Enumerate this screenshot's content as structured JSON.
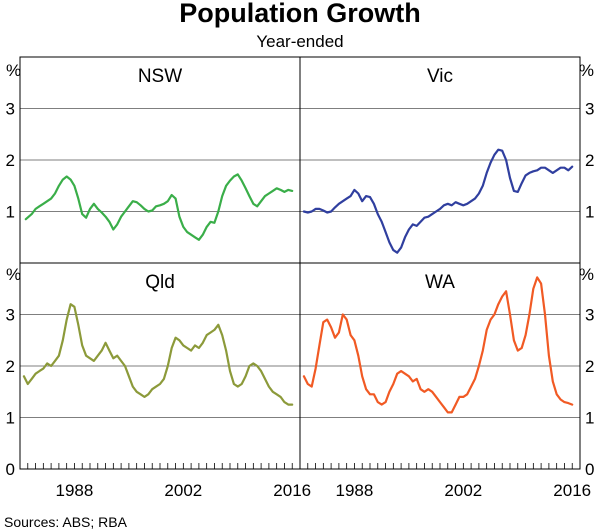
{
  "chart_data": {
    "type": "line",
    "title": "Population Growth",
    "subtitle": "Year-ended",
    "unit_label": "%",
    "source": "Sources:  ABS; RBA",
    "x_tick_labels": [
      "1988",
      "2002",
      "2016"
    ],
    "x_ticks": [
      1988,
      2002,
      2016
    ],
    "xlim": [
      1981,
      2017
    ],
    "panels": [
      {
        "name": "NSW",
        "color": "#3aae49",
        "ylim": [
          0,
          4
        ],
        "yticks": [
          1,
          2,
          3
        ],
        "series": [
          {
            "name": "NSW",
            "x": [
              1981.75,
              1982.5,
              1983.0,
              1983.5,
              1984.0,
              1984.5,
              1985.0,
              1985.5,
              1986.0,
              1986.5,
              1987.0,
              1987.5,
              1988.0,
              1988.5,
              1989.0,
              1989.5,
              1990.0,
              1990.5,
              1991.0,
              1991.5,
              1992.0,
              1992.5,
              1993.0,
              1993.5,
              1994.0,
              1994.5,
              1995.0,
              1995.5,
              1996.0,
              1996.5,
              1997.0,
              1997.5,
              1998.0,
              1998.5,
              1999.0,
              1999.5,
              2000.0,
              2000.5,
              2001.0,
              2001.5,
              2002.0,
              2002.5,
              2003.0,
              2003.5,
              2004.0,
              2004.5,
              2005.0,
              2005.5,
              2006.0,
              2006.5,
              2007.0,
              2007.5,
              2008.0,
              2008.5,
              2009.0,
              2009.5,
              2010.0,
              2010.5,
              2011.0,
              2011.5,
              2012.0,
              2012.5,
              2013.0,
              2013.5,
              2014.0,
              2014.5,
              2015.0,
              2015.5,
              2016.0
            ],
            "y": [
              0.85,
              0.95,
              1.05,
              1.1,
              1.15,
              1.2,
              1.25,
              1.35,
              1.5,
              1.62,
              1.68,
              1.62,
              1.5,
              1.25,
              0.95,
              0.88,
              1.05,
              1.15,
              1.05,
              0.98,
              0.9,
              0.8,
              0.65,
              0.75,
              0.9,
              1.0,
              1.1,
              1.2,
              1.18,
              1.12,
              1.05,
              1.0,
              1.02,
              1.1,
              1.12,
              1.15,
              1.2,
              1.32,
              1.25,
              0.9,
              0.7,
              0.6,
              0.55,
              0.5,
              0.45,
              0.55,
              0.7,
              0.8,
              0.78,
              1.0,
              1.3,
              1.5,
              1.6,
              1.68,
              1.72,
              1.6,
              1.45,
              1.3,
              1.15,
              1.1,
              1.2,
              1.3,
              1.35,
              1.4,
              1.45,
              1.42,
              1.38,
              1.42,
              1.4
            ]
          }
        ]
      },
      {
        "name": "Vic",
        "color": "#303f9f",
        "ylim": [
          0,
          4
        ],
        "yticks": [
          1,
          2,
          3
        ],
        "series": [
          {
            "name": "Vic",
            "x": [
              1981.5,
              1982.0,
              1982.5,
              1983.0,
              1983.5,
              1984.0,
              1984.5,
              1985.0,
              1985.5,
              1986.0,
              1986.5,
              1987.0,
              1987.5,
              1988.0,
              1988.5,
              1989.0,
              1989.5,
              1990.0,
              1990.5,
              1991.0,
              1991.5,
              1992.0,
              1992.5,
              1993.0,
              1993.5,
              1994.0,
              1994.5,
              1995.0,
              1995.5,
              1996.0,
              1996.5,
              1997.0,
              1997.5,
              1998.0,
              1998.5,
              1999.0,
              1999.5,
              2000.0,
              2000.5,
              2001.0,
              2001.5,
              2002.0,
              2002.5,
              2003.0,
              2003.5,
              2004.0,
              2004.5,
              2005.0,
              2005.5,
              2006.0,
              2006.5,
              2007.0,
              2007.5,
              2008.0,
              2008.5,
              2009.0,
              2009.5,
              2010.0,
              2010.5,
              2011.0,
              2011.5,
              2012.0,
              2012.5,
              2013.0,
              2013.5,
              2014.0,
              2014.5,
              2015.0,
              2015.5,
              2016.0
            ],
            "y": [
              1.0,
              0.98,
              1.0,
              1.05,
              1.05,
              1.02,
              0.98,
              1.0,
              1.08,
              1.15,
              1.2,
              1.25,
              1.3,
              1.42,
              1.35,
              1.2,
              1.3,
              1.28,
              1.15,
              0.95,
              0.8,
              0.6,
              0.4,
              0.25,
              0.2,
              0.3,
              0.5,
              0.65,
              0.75,
              0.72,
              0.8,
              0.88,
              0.9,
              0.95,
              1.0,
              1.05,
              1.12,
              1.15,
              1.12,
              1.18,
              1.15,
              1.12,
              1.15,
              1.2,
              1.25,
              1.35,
              1.5,
              1.75,
              1.95,
              2.1,
              2.2,
              2.18,
              2.0,
              1.65,
              1.4,
              1.38,
              1.55,
              1.7,
              1.75,
              1.78,
              1.8,
              1.85,
              1.85,
              1.8,
              1.75,
              1.8,
              1.85,
              1.85,
              1.8,
              1.87
            ]
          }
        ]
      },
      {
        "name": "Qld",
        "color": "#8c9a3a",
        "ylim": [
          0,
          4
        ],
        "yticks": [
          1,
          2,
          3
        ],
        "series": [
          {
            "name": "Qld",
            "x": [
              1981.5,
              1982.0,
              1982.5,
              1983.0,
              1983.5,
              1984.0,
              1984.5,
              1985.0,
              1985.5,
              1986.0,
              1986.5,
              1987.0,
              1987.5,
              1988.0,
              1988.5,
              1989.0,
              1989.5,
              1990.0,
              1990.5,
              1991.0,
              1991.5,
              1992.0,
              1992.5,
              1993.0,
              1993.5,
              1994.0,
              1994.5,
              1995.0,
              1995.5,
              1996.0,
              1996.5,
              1997.0,
              1997.5,
              1998.0,
              1998.5,
              1999.0,
              1999.5,
              2000.0,
              2000.5,
              2001.0,
              2001.5,
              2002.0,
              2002.5,
              2003.0,
              2003.5,
              2004.0,
              2004.5,
              2005.0,
              2005.5,
              2006.0,
              2006.5,
              2007.0,
              2007.5,
              2008.0,
              2008.5,
              2009.0,
              2009.5,
              2010.0,
              2010.5,
              2011.0,
              2011.5,
              2012.0,
              2012.5,
              2013.0,
              2013.5,
              2014.0,
              2014.5,
              2015.0,
              2015.5,
              2016.0
            ],
            "y": [
              1.8,
              1.65,
              1.75,
              1.85,
              1.9,
              1.95,
              2.05,
              2.0,
              2.1,
              2.2,
              2.5,
              2.9,
              3.2,
              3.15,
              2.8,
              2.4,
              2.2,
              2.15,
              2.1,
              2.2,
              2.3,
              2.45,
              2.3,
              2.15,
              2.2,
              2.1,
              2.0,
              1.8,
              1.6,
              1.5,
              1.45,
              1.4,
              1.45,
              1.55,
              1.6,
              1.65,
              1.75,
              2.0,
              2.35,
              2.55,
              2.5,
              2.4,
              2.35,
              2.3,
              2.4,
              2.35,
              2.45,
              2.6,
              2.65,
              2.7,
              2.8,
              2.6,
              2.3,
              1.9,
              1.65,
              1.6,
              1.65,
              1.8,
              2.0,
              2.05,
              2.0,
              1.9,
              1.75,
              1.6,
              1.5,
              1.45,
              1.4,
              1.3,
              1.25,
              1.25
            ]
          }
        ]
      },
      {
        "name": "WA",
        "color": "#f15a24",
        "ylim": [
          0,
          4
        ],
        "yticks": [
          1,
          2,
          3
        ],
        "series": [
          {
            "name": "WA",
            "x": [
              1981.5,
              1982.0,
              1982.5,
              1983.0,
              1983.5,
              1984.0,
              1984.5,
              1985.0,
              1985.5,
              1986.0,
              1986.5,
              1987.0,
              1987.5,
              1988.0,
              1988.5,
              1989.0,
              1989.5,
              1990.0,
              1990.5,
              1991.0,
              1991.5,
              1992.0,
              1992.5,
              1993.0,
              1993.5,
              1994.0,
              1994.5,
              1995.0,
              1995.5,
              1996.0,
              1996.5,
              1997.0,
              1997.5,
              1998.0,
              1998.5,
              1999.0,
              1999.5,
              2000.0,
              2000.5,
              2001.0,
              2001.5,
              2002.0,
              2002.5,
              2003.0,
              2003.5,
              2004.0,
              2004.5,
              2005.0,
              2005.5,
              2006.0,
              2006.5,
              2007.0,
              2007.5,
              2008.0,
              2008.5,
              2009.0,
              2009.5,
              2010.0,
              2010.5,
              2011.0,
              2011.5,
              2012.0,
              2012.5,
              2013.0,
              2013.5,
              2014.0,
              2014.5,
              2015.0,
              2015.5,
              2016.0
            ],
            "y": [
              1.8,
              1.65,
              1.6,
              1.95,
              2.4,
              2.85,
              2.9,
              2.75,
              2.55,
              2.65,
              3.0,
              2.9,
              2.6,
              2.5,
              2.2,
              1.8,
              1.55,
              1.45,
              1.45,
              1.3,
              1.25,
              1.3,
              1.5,
              1.65,
              1.85,
              1.9,
              1.85,
              1.8,
              1.7,
              1.75,
              1.55,
              1.5,
              1.55,
              1.5,
              1.4,
              1.3,
              1.2,
              1.1,
              1.1,
              1.25,
              1.4,
              1.4,
              1.45,
              1.6,
              1.75,
              2.0,
              2.3,
              2.7,
              2.9,
              3.0,
              3.2,
              3.35,
              3.45,
              3.0,
              2.5,
              2.3,
              2.35,
              2.6,
              3.0,
              3.5,
              3.72,
              3.6,
              3.0,
              2.2,
              1.7,
              1.45,
              1.35,
              1.3,
              1.28,
              1.25
            ]
          }
        ]
      }
    ]
  }
}
